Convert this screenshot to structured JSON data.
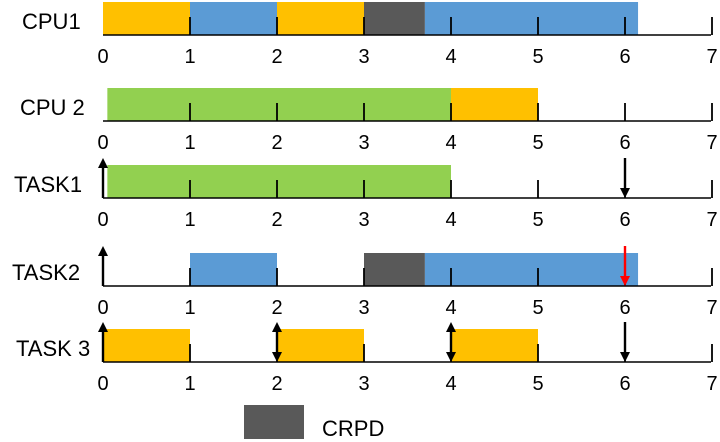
{
  "colors": {
    "orange": "#ffc000",
    "blue": "#5b9bd5",
    "green": "#92d050",
    "gray": "#595959",
    "axis": "#000000",
    "red_arrow": "#ff0000"
  },
  "tick_labels": [
    "0",
    "1",
    "2",
    "3",
    "4",
    "5",
    "6",
    "7"
  ],
  "rows": [
    {
      "label": "CPU1",
      "segments": [
        {
          "start": 0,
          "end": 1,
          "color": "orange"
        },
        {
          "start": 1,
          "end": 2,
          "color": "blue"
        },
        {
          "start": 2,
          "end": 3,
          "color": "orange"
        },
        {
          "start": 3,
          "end": 3.7,
          "color": "gray"
        },
        {
          "start": 3.7,
          "end": 6.15,
          "color": "blue"
        }
      ],
      "arrows": []
    },
    {
      "label": "CPU 2",
      "segments": [
        {
          "start": 0.05,
          "end": 4,
          "color": "green"
        },
        {
          "start": 4,
          "end": 5,
          "color": "orange"
        }
      ],
      "arrows": []
    },
    {
      "label": "TASK1",
      "segments": [
        {
          "start": 0.05,
          "end": 4,
          "color": "green"
        }
      ],
      "arrows": [
        {
          "t": 0,
          "dir": "up",
          "color": "axis"
        },
        {
          "t": 6,
          "dir": "down",
          "color": "axis"
        }
      ]
    },
    {
      "label": "TASK2",
      "segments": [
        {
          "start": 1,
          "end": 2,
          "color": "blue"
        },
        {
          "start": 3,
          "end": 3.7,
          "color": "gray"
        },
        {
          "start": 3.7,
          "end": 6.15,
          "color": "blue"
        }
      ],
      "arrows": [
        {
          "t": 0,
          "dir": "up",
          "color": "axis"
        },
        {
          "t": 6,
          "dir": "down",
          "color": "red_arrow"
        }
      ]
    },
    {
      "label": "TASK 3",
      "segments": [
        {
          "start": 0,
          "end": 1,
          "color": "orange"
        },
        {
          "start": 2,
          "end": 3,
          "color": "orange"
        },
        {
          "start": 4,
          "end": 5,
          "color": "orange"
        }
      ],
      "arrows": [
        {
          "t": 0,
          "dir": "up",
          "color": "axis"
        },
        {
          "t": 2,
          "dir": "both",
          "color": "axis"
        },
        {
          "t": 4,
          "dir": "both",
          "color": "axis"
        },
        {
          "t": 6,
          "dir": "down",
          "color": "axis"
        }
      ]
    }
  ],
  "legend": {
    "label": "CRPD",
    "color": "gray"
  }
}
